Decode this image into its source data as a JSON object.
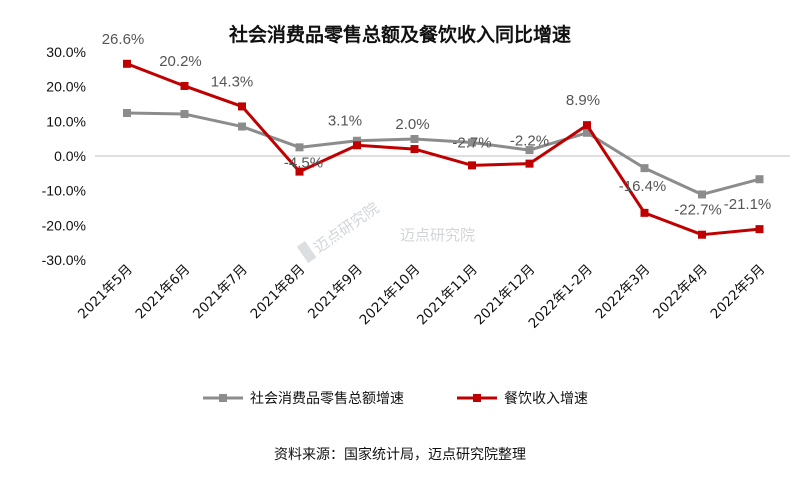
{
  "chart_data": {
    "type": "line",
    "title": "社会消费品零售总额及餐饮收入同比增速",
    "categories": [
      "2021年5月",
      "2021年6月",
      "2021年7月",
      "2021年8月",
      "2021年9月",
      "2021年10月",
      "2021年11月",
      "2021年12月",
      "2022年1-2月",
      "2022年3月",
      "2022年4月",
      "2022年5月"
    ],
    "ylim": [
      -30,
      30
    ],
    "yticks": [
      30,
      20,
      10,
      0,
      -10,
      -20,
      -30
    ],
    "ytick_labels": [
      "30.0%",
      "20.0%",
      "10.0%",
      "0.0%",
      "-10.0%",
      "-20.0%",
      "-30.0%"
    ],
    "grid": false,
    "legend_position": "bottom",
    "series": [
      {
        "name": "社会消费品零售总额增速",
        "color": "#8c8c8c",
        "marker": "square",
        "values": [
          12.4,
          12.1,
          8.5,
          2.5,
          4.4,
          4.9,
          3.9,
          1.7,
          6.7,
          -3.5,
          -11.1,
          -6.7
        ]
      },
      {
        "name": "餐饮收入增速",
        "color": "#c00000",
        "marker": "square",
        "values": [
          26.6,
          20.2,
          14.3,
          -4.5,
          3.1,
          2.0,
          -2.7,
          -2.2,
          8.9,
          -16.4,
          -22.7,
          -21.1
        ],
        "data_labels": [
          "26.6%",
          "20.2%",
          "14.3%",
          "-4.5%",
          "3.1%",
          "2.0%",
          "-2.7%",
          "-2.2%",
          "8.9%",
          "-16.4%",
          "-22.7%",
          "-21.1%"
        ]
      }
    ]
  },
  "source": "资料来源：国家统计局，迈点研究院整理",
  "watermark": "迈点研究院",
  "watermark_small": "迈点研究院"
}
